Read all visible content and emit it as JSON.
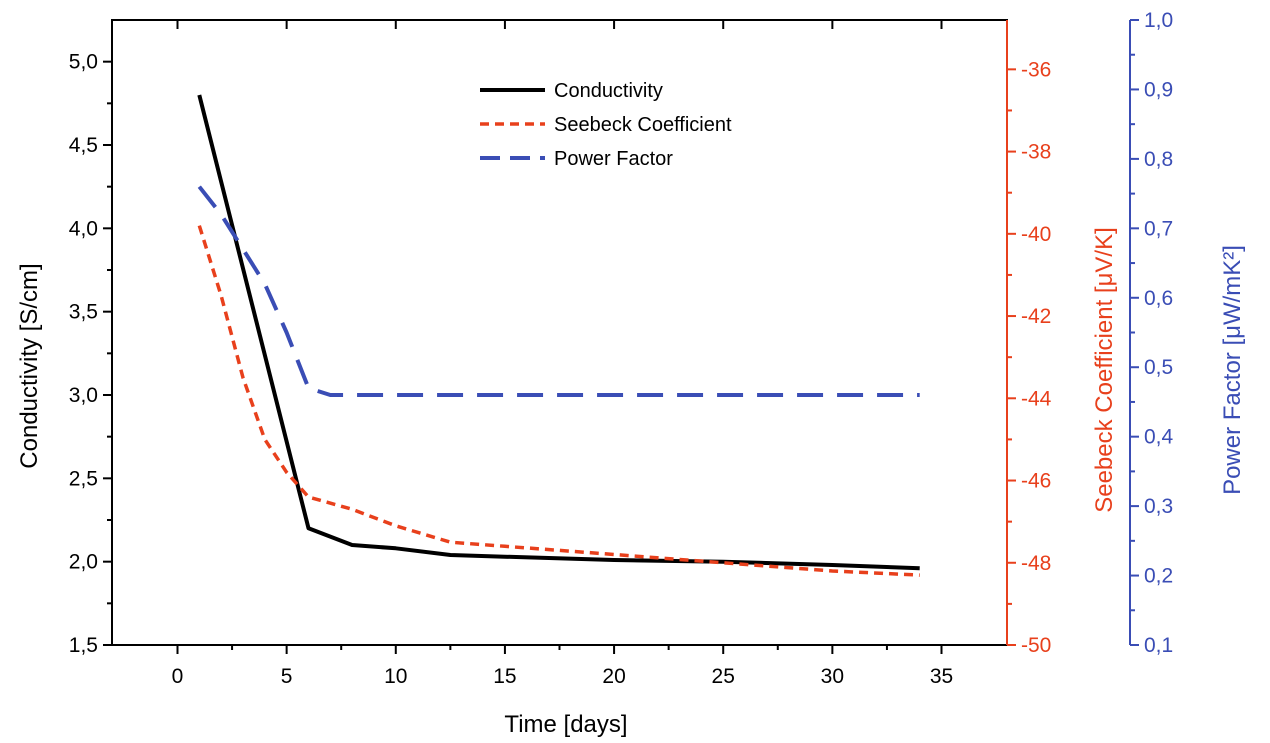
{
  "colors": {
    "conductivity": "#000000",
    "seebeck": "#e8401c",
    "power_factor": "#3a4db5",
    "frame": "#000000"
  },
  "chart_data": {
    "type": "line",
    "x": [
      1,
      6,
      8,
      10,
      12.5,
      15,
      20,
      25,
      30,
      34
    ],
    "xlabel": "Time [days]",
    "xlim": [
      -3,
      38
    ],
    "xticks": [
      "0",
      "5",
      "10",
      "15",
      "20",
      "25",
      "30",
      "35"
    ],
    "axes": {
      "left": {
        "label": "Conductivity [S/cm]",
        "ylim": [
          1.5,
          5.25
        ],
        "ticks": [
          "1,5",
          "2,0",
          "2,5",
          "3,0",
          "3,5",
          "4,0",
          "4,5",
          "5,0"
        ]
      },
      "right1": {
        "label": "Seebeck Coefficient  [μV/K]",
        "ylim": [
          -50,
          -34.8
        ],
        "ticks": [
          "-50",
          "-48",
          "-46",
          "-44",
          "-42",
          "-40",
          "-38",
          "-36"
        ]
      },
      "right2": {
        "label": "Power Factor [μW/mK²]",
        "ylim": [
          0.1,
          1.0
        ],
        "ticks": [
          "0,1",
          "0,2",
          "0,3",
          "0,4",
          "0,5",
          "0,6",
          "0,7",
          "0,8",
          "0,9",
          "1,0"
        ]
      }
    },
    "series": [
      {
        "name": "Conductivity",
        "axis": "left",
        "style": "solid",
        "x": [
          1,
          6,
          8,
          10,
          12.5,
          15,
          20,
          25,
          30,
          34
        ],
        "y": [
          4.8,
          2.2,
          2.1,
          2.08,
          2.04,
          2.03,
          2.01,
          2.0,
          1.98,
          1.96
        ]
      },
      {
        "name": "Seebeck Coefficient",
        "axis": "right1",
        "style": "dotted",
        "x": [
          1,
          2,
          3,
          4,
          5,
          6,
          8,
          10,
          12.5,
          15,
          20,
          25,
          30,
          34
        ],
        "y": [
          -39.8,
          -41.5,
          -43.5,
          -45.0,
          -45.8,
          -46.4,
          -46.7,
          -47.1,
          -47.5,
          -47.6,
          -47.8,
          -48.0,
          -48.2,
          -48.3
        ]
      },
      {
        "name": "Power Factor",
        "axis": "right2",
        "style": "dashed",
        "x": [
          1,
          2,
          3,
          4,
          5,
          6,
          7,
          10,
          15,
          20,
          25,
          30,
          34
        ],
        "y": [
          0.76,
          0.72,
          0.67,
          0.62,
          0.55,
          0.47,
          0.46,
          0.46,
          0.46,
          0.46,
          0.46,
          0.46,
          0.46
        ]
      }
    ],
    "legend": {
      "position": "top-center",
      "entries": [
        "Conductivity",
        "Seebeck Coefficient",
        "Power Factor"
      ]
    }
  }
}
